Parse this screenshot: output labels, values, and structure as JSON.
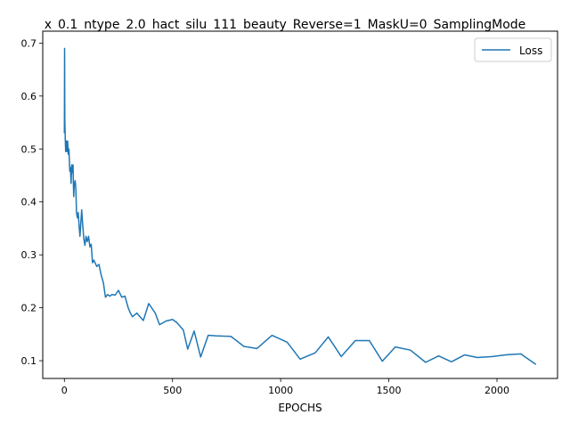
{
  "chart_data": {
    "type": "line",
    "title": "x_0.1_ntype_2.0_hact_silu_111_beauty_Reverse=1_MaskU=0_SamplingMode",
    "xlabel": "EPOCHS",
    "ylabel": "",
    "xlim": [
      -100,
      2280
    ],
    "ylim": [
      0.0665,
      0.7225
    ],
    "xticks": [
      0,
      500,
      1000,
      1500,
      2000
    ],
    "yticks": [
      0.1,
      0.2,
      0.3,
      0.4,
      0.5,
      0.6,
      0.7
    ],
    "grid": false,
    "legend_position": "upper right",
    "colors": {
      "Loss": "#1f77b4"
    },
    "series": [
      {
        "name": "Loss",
        "x": [
          0,
          1,
          2,
          4,
          6,
          8,
          10,
          12,
          15,
          18,
          21,
          25,
          28,
          31,
          34,
          37,
          40,
          43,
          46,
          50,
          53,
          56,
          60,
          64,
          68,
          72,
          76,
          80,
          85,
          90,
          95,
          100,
          106,
          112,
          118,
          124,
          130,
          136,
          142,
          150,
          160,
          170,
          180,
          190,
          200,
          210,
          220,
          235,
          250,
          265,
          280,
          295,
          305,
          315,
          335,
          365,
          390,
          420,
          440,
          470,
          500,
          520,
          550,
          570,
          600,
          630,
          665,
          700,
          770,
          830,
          890,
          960,
          1030,
          1090,
          1160,
          1220,
          1280,
          1345,
          1410,
          1470,
          1530,
          1600,
          1670,
          1730,
          1790,
          1850,
          1910,
          1980,
          2040,
          2110,
          2180
        ],
        "values": [
          0.53,
          0.69,
          0.555,
          0.52,
          0.495,
          0.51,
          0.515,
          0.495,
          0.515,
          0.49,
          0.5,
          0.458,
          0.465,
          0.435,
          0.47,
          0.455,
          0.47,
          0.41,
          0.435,
          0.44,
          0.425,
          0.38,
          0.37,
          0.38,
          0.355,
          0.335,
          0.36,
          0.385,
          0.355,
          0.33,
          0.318,
          0.335,
          0.325,
          0.335,
          0.315,
          0.32,
          0.285,
          0.29,
          0.285,
          0.278,
          0.282,
          0.262,
          0.248,
          0.22,
          0.225,
          0.222,
          0.225,
          0.224,
          0.233,
          0.22,
          0.222,
          0.2,
          0.19,
          0.183,
          0.19,
          0.176,
          0.208,
          0.19,
          0.168,
          0.175,
          0.178,
          0.172,
          0.158,
          0.122,
          0.156,
          0.107,
          0.148,
          0.147,
          0.146,
          0.127,
          0.123,
          0.148,
          0.135,
          0.103,
          0.115,
          0.145,
          0.108,
          0.138,
          0.138,
          0.099,
          0.126,
          0.12,
          0.097,
          0.109,
          0.098,
          0.111,
          0.106,
          0.108,
          0.111,
          0.113,
          0.093
        ]
      }
    ]
  }
}
